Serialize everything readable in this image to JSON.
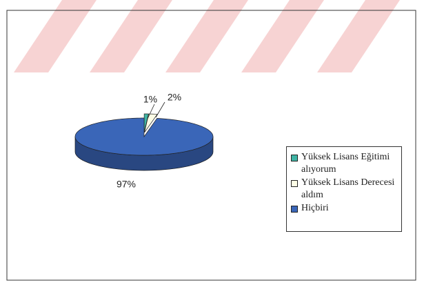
{
  "chart_data": {
    "type": "pie",
    "categories": [
      "Yüksek Lisans Eğitimi alıyorum",
      "Yüksek Lisans Derecesi aldım",
      "Hiçbiri"
    ],
    "values": [
      1,
      2,
      97
    ],
    "value_labels": [
      "1%",
      "2%",
      "97%"
    ],
    "colors": [
      "#3fb4a4",
      "#fdfde6",
      "#3a66b8"
    ],
    "legend": "right"
  }
}
